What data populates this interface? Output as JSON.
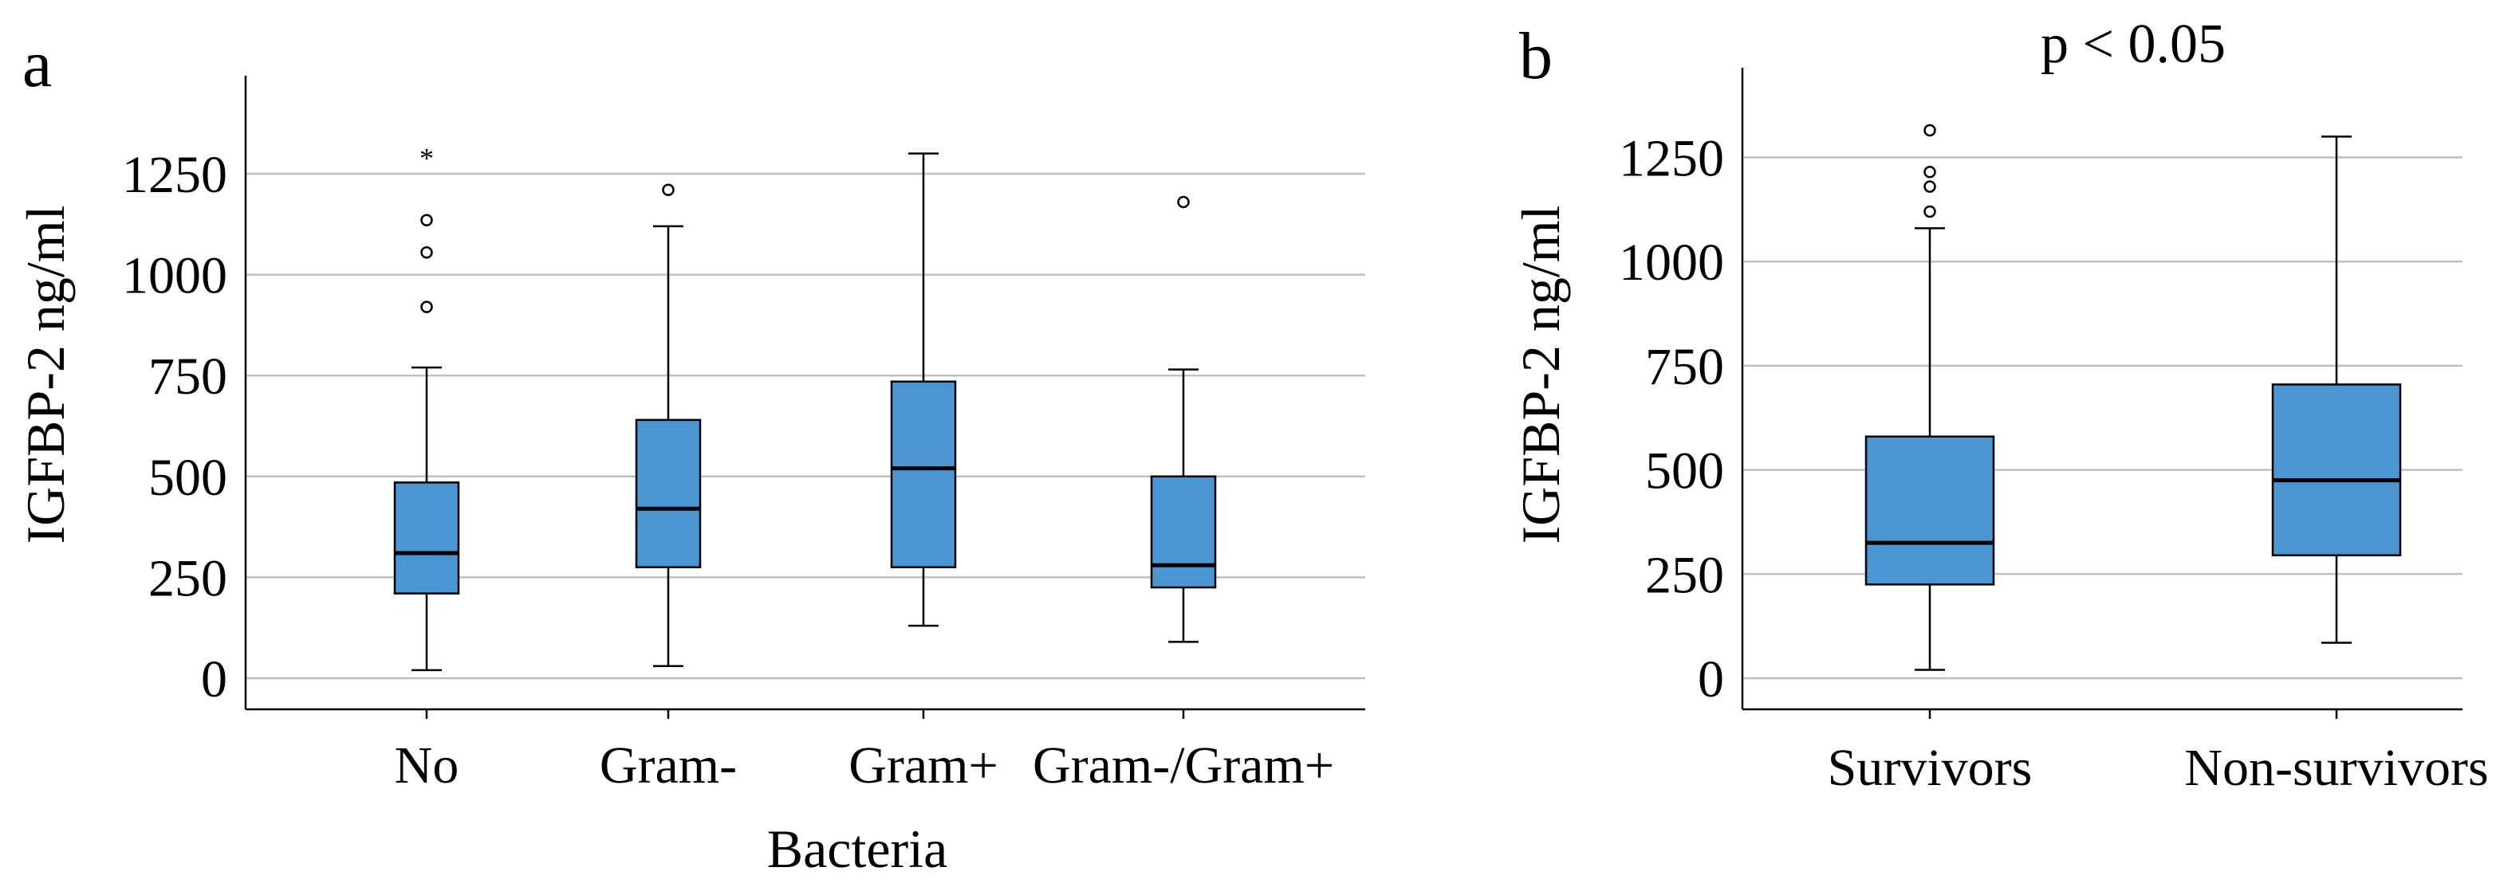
{
  "chart_data": [
    {
      "panel": "a",
      "type": "box",
      "xlabel": "Bacteria",
      "ylabel": "IGFBP-2 ng/ml",
      "ylim": [
        -80,
        1450
      ],
      "yticks": [
        0,
        250,
        500,
        750,
        1000,
        1250
      ],
      "grid": true,
      "box_color": "#4a96d2",
      "categories": [
        "No",
        "Gram-",
        "Gram+",
        "Gram-/Gram+"
      ],
      "boxes": [
        {
          "category": "No",
          "min": 20,
          "q1": 210,
          "median": 310,
          "q3": 485,
          "max": 770,
          "outliers": [
            920,
            1055,
            1135
          ],
          "extremes": [
            1300
          ]
        },
        {
          "category": "Gram-",
          "min": 30,
          "q1": 275,
          "median": 420,
          "q3": 640,
          "max": 1120,
          "outliers": [
            1210
          ],
          "extremes": []
        },
        {
          "category": "Gram+",
          "min": 130,
          "q1": 275,
          "median": 520,
          "q3": 735,
          "max": 1300,
          "outliers": [],
          "extremes": []
        },
        {
          "category": "Gram-/Gram+",
          "min": 90,
          "q1": 225,
          "median": 280,
          "q3": 500,
          "max": 765,
          "outliers": [
            1180
          ],
          "extremes": []
        }
      ]
    },
    {
      "panel": "b",
      "type": "box",
      "xlabel": "",
      "ylabel": "IGFBP-2 ng/ml",
      "annotation": "p < 0.05",
      "ylim": [
        -80,
        1450
      ],
      "yticks": [
        0,
        250,
        500,
        750,
        1000,
        1250
      ],
      "grid": true,
      "box_color": "#4a96d2",
      "categories": [
        "Survivors",
        "Non-survivors"
      ],
      "boxes": [
        {
          "category": "Survivors",
          "min": 20,
          "q1": 225,
          "median": 325,
          "q3": 580,
          "max": 1080,
          "outliers": [
            1120,
            1180,
            1215,
            1315
          ],
          "extremes": []
        },
        {
          "category": "Non-survivors",
          "min": 85,
          "q1": 295,
          "median": 475,
          "q3": 705,
          "max": 1300,
          "outliers": [],
          "extremes": []
        }
      ]
    }
  ]
}
